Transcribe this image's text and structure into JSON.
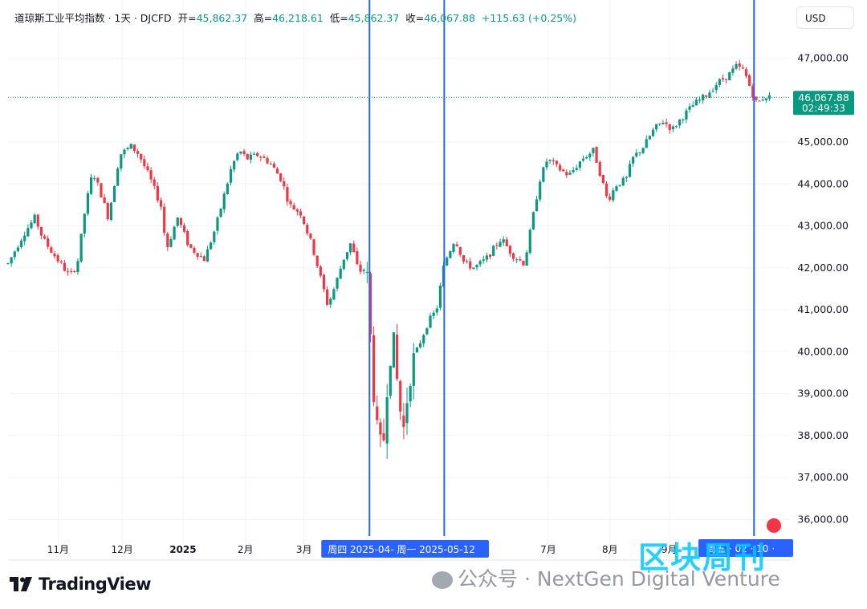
{
  "header": {
    "symbol": "道琼斯工业平均指数 · 1天 · DJCFD",
    "open_label": "开=",
    "open": "45,862.37",
    "high_label": "高=",
    "high": "46,218.61",
    "low_label": "低=",
    "low": "45,862.37",
    "close_label": "收=",
    "close": "46,067.88",
    "change": "+115.63 (+0.25%)"
  },
  "currency_button": "USD",
  "price_tag": {
    "price": "46,067.88",
    "countdown": "02:49:33"
  },
  "range_label": "周四 2025-04-  周一 2025-05-12",
  "date_label_right": "周五 · 02 · 10 ·",
  "logo_text": "TradingView",
  "watermark": "公众号 · NextGen Digital Venture",
  "brand_overlay": "区块周刊",
  "colors": {
    "up": "#089981",
    "down": "#f23645",
    "marker": "#2962ff",
    "last_price": "#089981"
  },
  "chart_data": {
    "type": "candlestick",
    "y_axis": {
      "range": [
        35500,
        47800
      ],
      "ticks": [
        36000,
        37000,
        38000,
        39000,
        40000,
        41000,
        42000,
        43000,
        44000,
        45000,
        46000,
        47000
      ],
      "tick_labels": [
        "36,000.00",
        "37,000.00",
        "38,000.00",
        "39,000.00",
        "40,000.00",
        "41,000.00",
        "42,000.00",
        "43,000.00",
        "44,000.00",
        "45,000.00",
        "46,000.00",
        "47,000.00"
      ]
    },
    "x_axis": {
      "labels": [
        {
          "label": "11月",
          "t": 0.065
        },
        {
          "label": "12月",
          "t": 0.148
        },
        {
          "label": "2025",
          "t": 0.227,
          "bold": true
        },
        {
          "label": "2月",
          "t": 0.308
        },
        {
          "label": "3月",
          "t": 0.384
        },
        {
          "label": "7月",
          "t": 0.701
        },
        {
          "label": "8月",
          "t": 0.781
        },
        {
          "label": "9月",
          "t": 0.858
        }
      ]
    },
    "last_price": 46067.88,
    "vertical_markers": [
      0.469,
      0.566,
      0.968
    ],
    "path_points": [
      [
        0.0,
        42100
      ],
      [
        0.02,
        42800
      ],
      [
        0.035,
        43200
      ],
      [
        0.045,
        42700
      ],
      [
        0.06,
        42300
      ],
      [
        0.08,
        41800
      ],
      [
        0.09,
        42100
      ],
      [
        0.1,
        43400
      ],
      [
        0.11,
        44300
      ],
      [
        0.12,
        43800
      ],
      [
        0.13,
        43200
      ],
      [
        0.145,
        44700
      ],
      [
        0.16,
        44900
      ],
      [
        0.17,
        44700
      ],
      [
        0.185,
        44100
      ],
      [
        0.2,
        43400
      ],
      [
        0.205,
        42400
      ],
      [
        0.22,
        43200
      ],
      [
        0.235,
        42500
      ],
      [
        0.255,
        42200
      ],
      [
        0.27,
        43000
      ],
      [
        0.29,
        44400
      ],
      [
        0.3,
        44800
      ],
      [
        0.31,
        44600
      ],
      [
        0.325,
        44700
      ],
      [
        0.34,
        44500
      ],
      [
        0.355,
        44100
      ],
      [
        0.365,
        43500
      ],
      [
        0.38,
        43300
      ],
      [
        0.395,
        42500
      ],
      [
        0.405,
        41800
      ],
      [
        0.415,
        41100
      ],
      [
        0.425,
        41600
      ],
      [
        0.435,
        42200
      ],
      [
        0.445,
        42600
      ],
      [
        0.455,
        41900
      ],
      [
        0.465,
        42000
      ],
      [
        0.47,
        40400
      ],
      [
        0.478,
        38100
      ],
      [
        0.486,
        37500
      ],
      [
        0.494,
        39900
      ],
      [
        0.5,
        40200
      ],
      [
        0.508,
        38700
      ],
      [
        0.514,
        38100
      ],
      [
        0.52,
        39400
      ],
      [
        0.53,
        40000
      ],
      [
        0.545,
        40700
      ],
      [
        0.556,
        41000
      ],
      [
        0.566,
        42100
      ],
      [
        0.58,
        42700
      ],
      [
        0.592,
        42100
      ],
      [
        0.605,
        42000
      ],
      [
        0.62,
        42200
      ],
      [
        0.64,
        42700
      ],
      [
        0.655,
        42300
      ],
      [
        0.67,
        42100
      ],
      [
        0.68,
        43100
      ],
      [
        0.69,
        44100
      ],
      [
        0.7,
        44600
      ],
      [
        0.712,
        44400
      ],
      [
        0.728,
        44200
      ],
      [
        0.745,
        44600
      ],
      [
        0.76,
        44800
      ],
      [
        0.772,
        44000
      ],
      [
        0.778,
        43600
      ],
      [
        0.79,
        44000
      ],
      [
        0.802,
        44100
      ],
      [
        0.81,
        44600
      ],
      [
        0.825,
        44900
      ],
      [
        0.838,
        45300
      ],
      [
        0.85,
        45500
      ],
      [
        0.862,
        45300
      ],
      [
        0.875,
        45600
      ],
      [
        0.89,
        45900
      ],
      [
        0.905,
        46100
      ],
      [
        0.92,
        46400
      ],
      [
        0.935,
        46600
      ],
      [
        0.945,
        46800
      ],
      [
        0.955,
        46700
      ],
      [
        0.965,
        46200
      ],
      [
        0.972,
        45900
      ],
      [
        0.982,
        46100
      ],
      [
        0.988,
        46068
      ]
    ]
  }
}
